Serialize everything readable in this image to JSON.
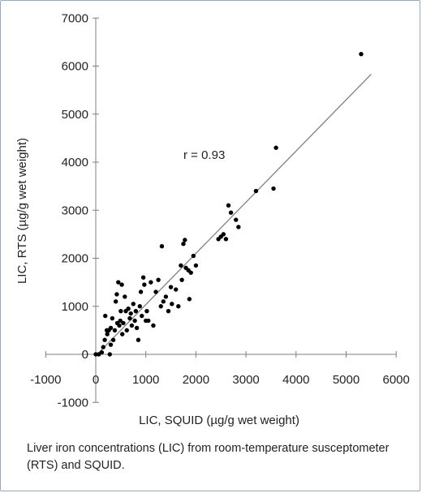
{
  "chart_data": {
    "type": "scatter",
    "xlabel": "LIC, SQUID (µg/g wet weight)",
    "ylabel": "LIC, RTS (µg/g wet weight)",
    "xlim": [
      -1000,
      6000
    ],
    "ylim": [
      -1000,
      7000
    ],
    "x_ticks": [
      -1000,
      0,
      1000,
      2000,
      3000,
      4000,
      5000,
      6000
    ],
    "y_ticks": [
      -1000,
      0,
      1000,
      2000,
      3000,
      4000,
      5000,
      6000,
      7000
    ],
    "x_tick_labels": [
      "-1000",
      "0",
      "1000",
      "2000",
      "3000",
      "4000",
      "5000",
      "6000"
    ],
    "y_tick_labels": [
      "-1000",
      "0",
      "1000",
      "2000",
      "3000",
      "4000",
      "5000",
      "6000",
      "7000"
    ],
    "annotation": "r = 0.93",
    "grid": false,
    "legend": "none",
    "marker_color": "#000000",
    "trendline_color": "#808080",
    "trendline": {
      "x": [
        0,
        5500
      ],
      "y": [
        -30,
        5830
      ]
    },
    "points": [
      {
        "x": 0,
        "y": 0
      },
      {
        "x": 60,
        "y": 0
      },
      {
        "x": 120,
        "y": 40
      },
      {
        "x": 150,
        "y": 150
      },
      {
        "x": 180,
        "y": 300
      },
      {
        "x": 190,
        "y": 800
      },
      {
        "x": 220,
        "y": 500
      },
      {
        "x": 230,
        "y": 420
      },
      {
        "x": 260,
        "y": 500
      },
      {
        "x": 280,
        "y": 0
      },
      {
        "x": 300,
        "y": 550
      },
      {
        "x": 300,
        "y": 200
      },
      {
        "x": 330,
        "y": 750
      },
      {
        "x": 350,
        "y": 300
      },
      {
        "x": 380,
        "y": 500
      },
      {
        "x": 400,
        "y": 1100
      },
      {
        "x": 420,
        "y": 1250
      },
      {
        "x": 430,
        "y": 650
      },
      {
        "x": 450,
        "y": 1500
      },
      {
        "x": 470,
        "y": 600
      },
      {
        "x": 490,
        "y": 700
      },
      {
        "x": 500,
        "y": 900
      },
      {
        "x": 520,
        "y": 1450
      },
      {
        "x": 530,
        "y": 420
      },
      {
        "x": 550,
        "y": 650
      },
      {
        "x": 580,
        "y": 1200
      },
      {
        "x": 600,
        "y": 900
      },
      {
        "x": 620,
        "y": 500
      },
      {
        "x": 650,
        "y": 950
      },
      {
        "x": 680,
        "y": 750
      },
      {
        "x": 700,
        "y": 850
      },
      {
        "x": 720,
        "y": 600
      },
      {
        "x": 750,
        "y": 1050
      },
      {
        "x": 780,
        "y": 700
      },
      {
        "x": 800,
        "y": 900
      },
      {
        "x": 820,
        "y": 550
      },
      {
        "x": 850,
        "y": 300
      },
      {
        "x": 880,
        "y": 1000
      },
      {
        "x": 900,
        "y": 1300
      },
      {
        "x": 920,
        "y": 800
      },
      {
        "x": 950,
        "y": 1600
      },
      {
        "x": 970,
        "y": 1450
      },
      {
        "x": 1000,
        "y": 700
      },
      {
        "x": 1020,
        "y": 900
      },
      {
        "x": 1050,
        "y": 700
      },
      {
        "x": 1100,
        "y": 1500
      },
      {
        "x": 1150,
        "y": 600
      },
      {
        "x": 1200,
        "y": 1300
      },
      {
        "x": 1250,
        "y": 1550
      },
      {
        "x": 1300,
        "y": 1000
      },
      {
        "x": 1320,
        "y": 2250
      },
      {
        "x": 1350,
        "y": 1100
      },
      {
        "x": 1400,
        "y": 1200
      },
      {
        "x": 1450,
        "y": 900
      },
      {
        "x": 1500,
        "y": 1400
      },
      {
        "x": 1520,
        "y": 1050
      },
      {
        "x": 1600,
        "y": 1350
      },
      {
        "x": 1650,
        "y": 1000
      },
      {
        "x": 1700,
        "y": 1850
      },
      {
        "x": 1720,
        "y": 1550
      },
      {
        "x": 1750,
        "y": 2300
      },
      {
        "x": 1780,
        "y": 2380
      },
      {
        "x": 1800,
        "y": 1800
      },
      {
        "x": 1850,
        "y": 1750
      },
      {
        "x": 1870,
        "y": 1150
      },
      {
        "x": 1900,
        "y": 1700
      },
      {
        "x": 1950,
        "y": 2050
      },
      {
        "x": 2000,
        "y": 1850
      },
      {
        "x": 2450,
        "y": 2400
      },
      {
        "x": 2500,
        "y": 2450
      },
      {
        "x": 2550,
        "y": 2500
      },
      {
        "x": 2600,
        "y": 2400
      },
      {
        "x": 2650,
        "y": 3100
      },
      {
        "x": 2700,
        "y": 2950
      },
      {
        "x": 2800,
        "y": 2800
      },
      {
        "x": 2850,
        "y": 2650
      },
      {
        "x": 3200,
        "y": 3400
      },
      {
        "x": 3550,
        "y": 3450
      },
      {
        "x": 3600,
        "y": 4300
      },
      {
        "x": 5300,
        "y": 6250
      }
    ]
  },
  "caption": "Liver iron concentrations (LIC) from room-temperature susceptometer (RTS) and SQUID."
}
